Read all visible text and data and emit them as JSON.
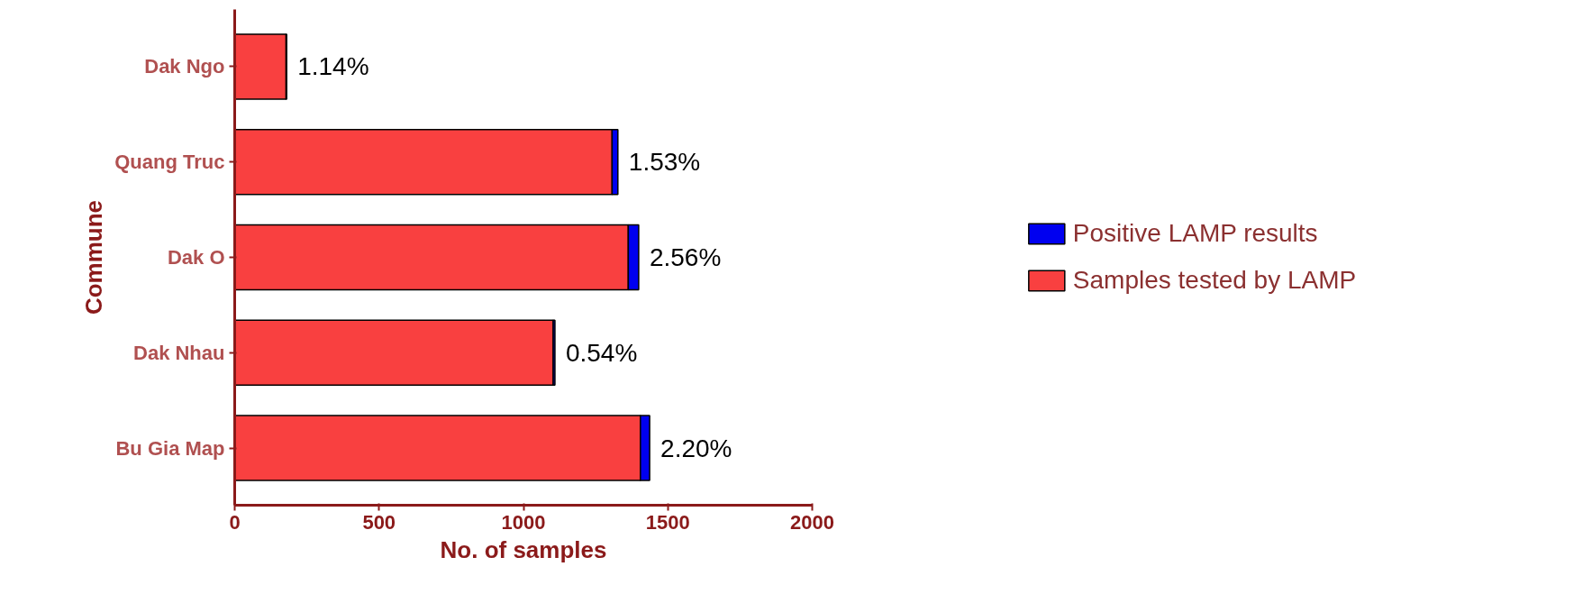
{
  "chart_data": {
    "type": "bar",
    "orientation": "horizontal",
    "stacked": true,
    "xlabel": "No. of samples",
    "ylabel": "Commune",
    "categories": [
      "Dak Ngo",
      "Quang Truc",
      "Dak O",
      "Dak Nhau",
      "Bu Gia Map"
    ],
    "xlim": [
      0,
      2000
    ],
    "xticks": [
      0,
      500,
      1000,
      1500,
      2000
    ],
    "grid": false,
    "legend": "right",
    "series": [
      {
        "name": "Samples tested by LAMP",
        "color": "#f94040",
        "values": [
          178,
          1307,
          1363,
          1103,
          1405
        ]
      },
      {
        "name": "Positive LAMP results",
        "color": "#0000f0",
        "values": [
          2,
          20,
          36,
          6,
          32
        ]
      }
    ],
    "annotations": [
      {
        "text": "1.14%",
        "x": 180,
        "y": "Dak Ngo"
      },
      {
        "text": "1.53%",
        "x": 1327,
        "y": "Quang Truc"
      },
      {
        "text": "2.56%",
        "x": 1399,
        "y": "Dak O"
      },
      {
        "text": "0.54%",
        "x": 1109,
        "y": "Dak Nhau"
      },
      {
        "text": "2.20%",
        "x": 1437,
        "y": "Bu Gia Map"
      }
    ]
  }
}
